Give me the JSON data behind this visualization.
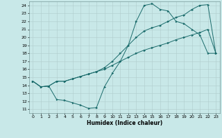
{
  "xlabel": "Humidex (Indice chaleur)",
  "bg_color": "#c8e8e8",
  "grid_color": "#b0cccc",
  "line_color": "#1a6b6b",
  "xlim": [
    -0.5,
    23.5
  ],
  "ylim": [
    10.5,
    24.5
  ],
  "xticks": [
    0,
    1,
    2,
    3,
    4,
    5,
    6,
    7,
    8,
    9,
    10,
    11,
    12,
    13,
    14,
    15,
    16,
    17,
    18,
    19,
    20,
    21,
    22,
    23
  ],
  "yticks": [
    11,
    12,
    13,
    14,
    15,
    16,
    17,
    18,
    19,
    20,
    21,
    22,
    23,
    24
  ],
  "line1_x": [
    0,
    1,
    2,
    3,
    4,
    5,
    6,
    7,
    8,
    9,
    10,
    11,
    12,
    13,
    14,
    15,
    16,
    17,
    18,
    19,
    20,
    21,
    22,
    23
  ],
  "line1_y": [
    14.5,
    13.8,
    13.9,
    14.5,
    14.5,
    14.8,
    15.1,
    15.4,
    15.7,
    16.0,
    16.5,
    17.0,
    17.5,
    18.0,
    18.4,
    18.7,
    19.0,
    19.3,
    19.7,
    20.0,
    20.3,
    20.6,
    21.0,
    18.0
  ],
  "line2_x": [
    0,
    1,
    2,
    3,
    4,
    5,
    6,
    7,
    8,
    9,
    10,
    11,
    12,
    13,
    14,
    15,
    16,
    17,
    18,
    19,
    20,
    21,
    22,
    23
  ],
  "line2_y": [
    14.5,
    13.8,
    13.9,
    14.5,
    14.5,
    14.8,
    15.1,
    15.4,
    15.7,
    16.2,
    17.0,
    18.0,
    19.0,
    20.0,
    20.8,
    21.2,
    21.5,
    22.0,
    22.5,
    22.8,
    23.5,
    24.0,
    24.1,
    18.0
  ],
  "line3_x": [
    0,
    1,
    2,
    3,
    4,
    5,
    6,
    7,
    8,
    9,
    10,
    11,
    12,
    13,
    14,
    15,
    16,
    17,
    18,
    19,
    20,
    21,
    22,
    23
  ],
  "line3_y": [
    14.5,
    13.8,
    13.9,
    12.2,
    12.1,
    11.8,
    11.5,
    11.1,
    11.2,
    13.8,
    15.5,
    17.0,
    19.0,
    22.0,
    24.0,
    24.2,
    23.5,
    23.3,
    22.0,
    21.7,
    21.0,
    20.3,
    18.0,
    18.0
  ],
  "tick_fontsize": 4.5,
  "label_fontsize": 5.5
}
